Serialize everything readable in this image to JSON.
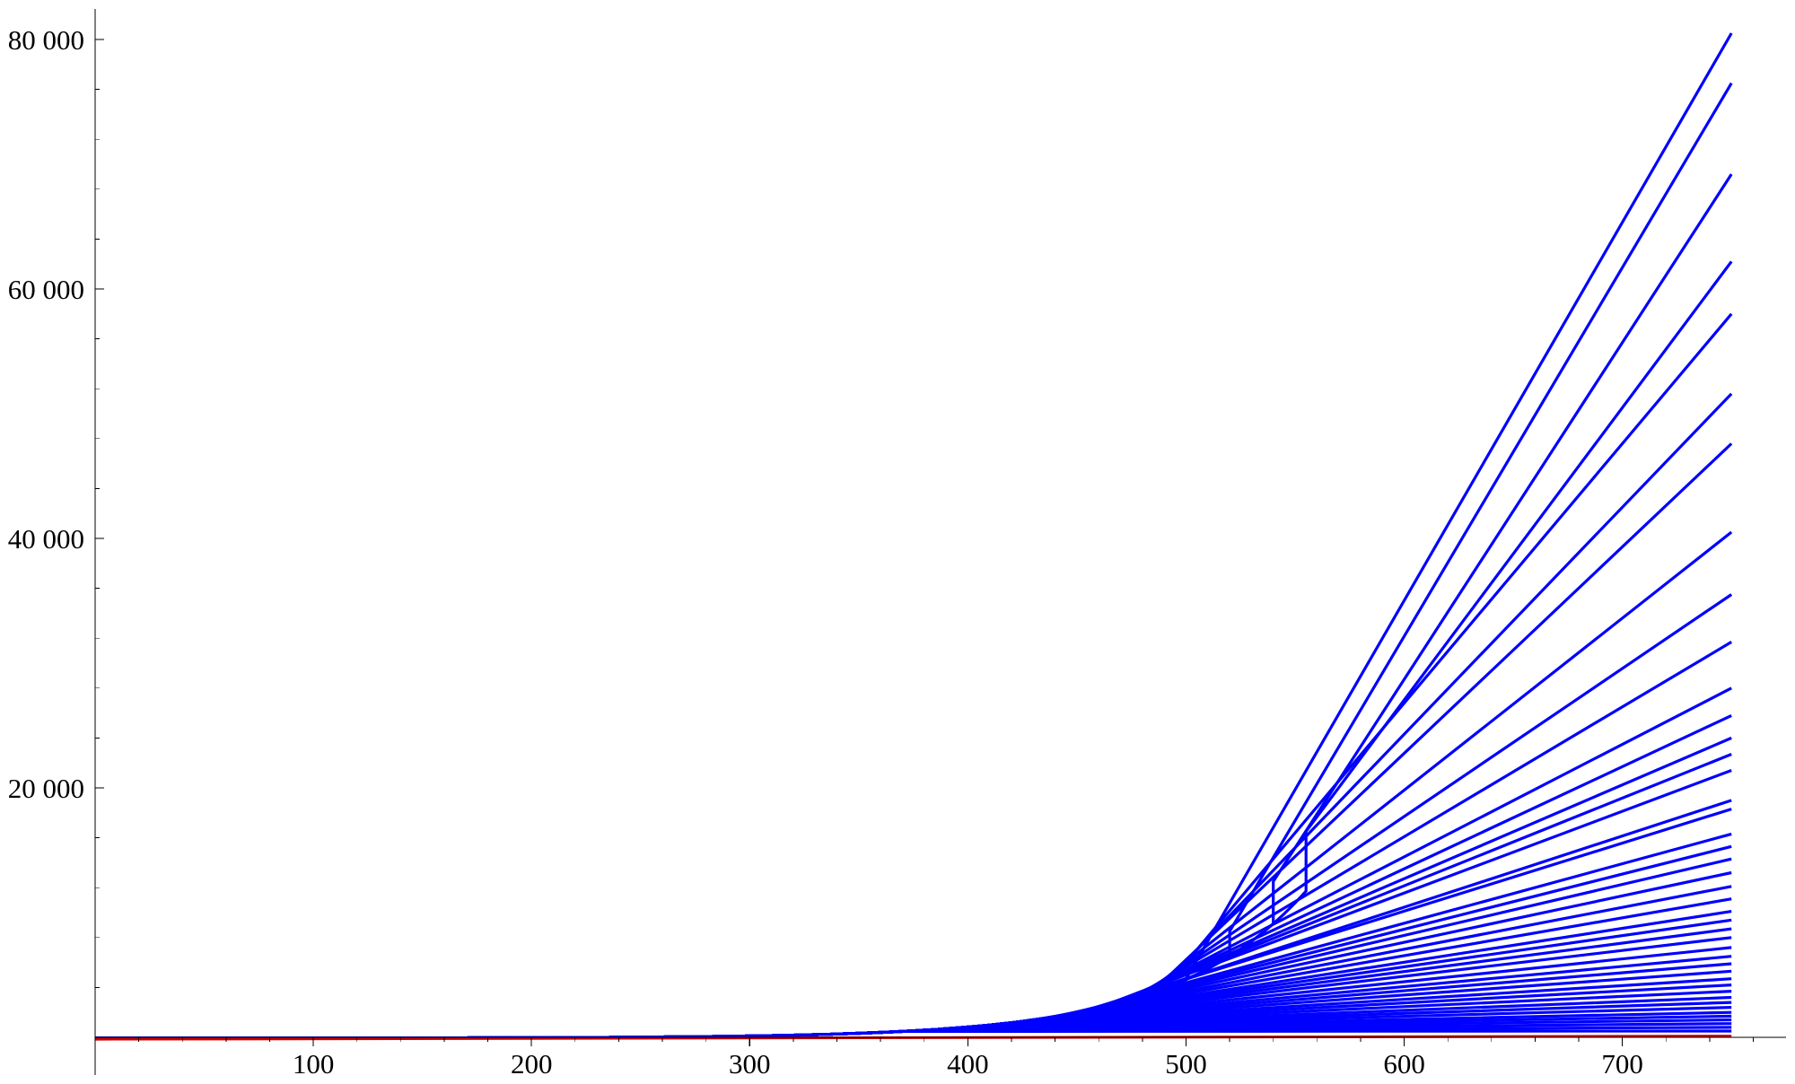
{
  "chart_data": {
    "type": "line",
    "title": "",
    "xlabel": "",
    "ylabel": "",
    "xlim": [
      0,
      775
    ],
    "ylim": [
      -400,
      82000
    ],
    "grid": false,
    "legend": "none",
    "x_ticks": [
      {
        "value": 100,
        "label": "100"
      },
      {
        "value": 200,
        "label": "200"
      },
      {
        "value": 300,
        "label": "300"
      },
      {
        "value": 400,
        "label": "400"
      },
      {
        "value": 500,
        "label": "500"
      },
      {
        "value": 600,
        "label": "600"
      },
      {
        "value": 700,
        "label": "700"
      }
    ],
    "y_ticks": [
      {
        "value": 20000,
        "label": "20 000"
      },
      {
        "value": 40000,
        "label": "40 000"
      },
      {
        "value": 60000,
        "label": "60 000"
      },
      {
        "value": 80000,
        "label": "80 000"
      }
    ],
    "series_color": "#0000ff",
    "baseline_color": "#cc0000",
    "x_start": 0,
    "x_end": 750,
    "endpoint_values": [
      80500,
      76500,
      69200,
      62200,
      58000,
      51600,
      47600,
      40500,
      35500,
      31700,
      28000,
      25800,
      24000,
      22700,
      21400,
      19000,
      18300,
      16300,
      15300,
      14300,
      13200,
      12100,
      11100,
      10100,
      9400,
      8700,
      8000,
      7200,
      6500,
      5900,
      5300,
      4700,
      4200,
      3700,
      3200,
      2800,
      2400,
      2000,
      1700,
      1400,
      1100,
      800,
      500
    ],
    "break_points": [
      {
        "x": 500,
        "y": 4700
      },
      {
        "x": 520,
        "y": 8500
      },
      {
        "x": 540,
        "y": 12500
      },
      {
        "x": 555,
        "y": 16500
      }
    ],
    "baseline": {
      "x": [
        0,
        750
      ],
      "y": [
        -150,
        100
      ]
    }
  }
}
